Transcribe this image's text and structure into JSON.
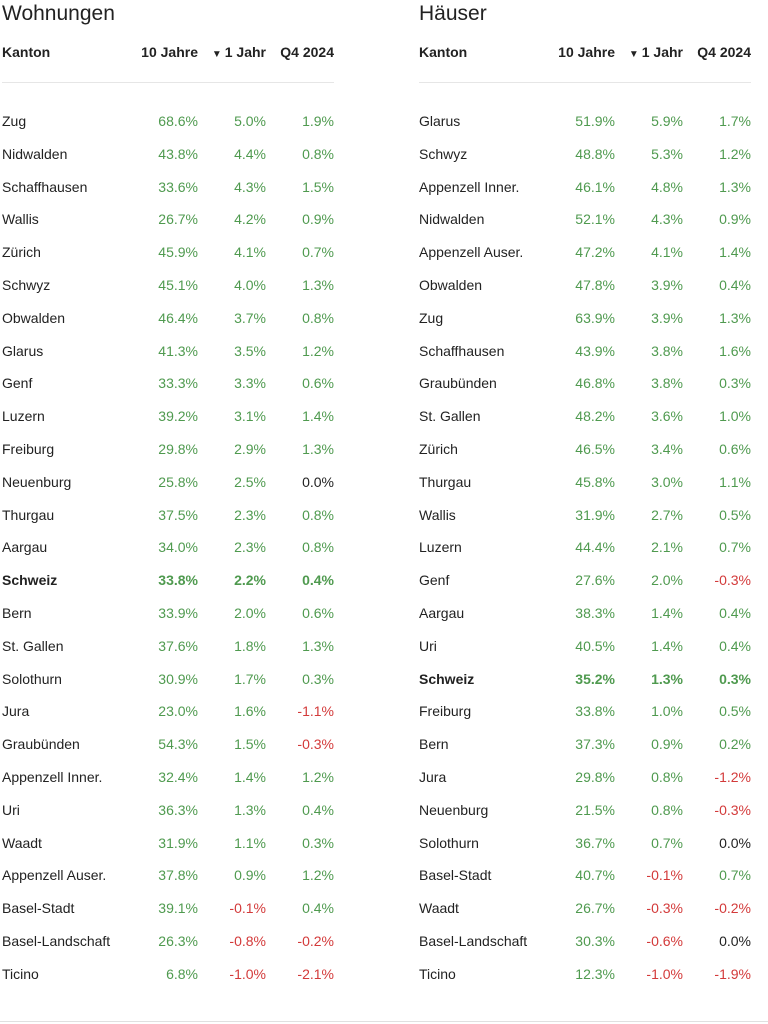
{
  "colors": {
    "positive": "#4f9a4f",
    "negative": "#d33a3a",
    "neutral": "#222222"
  },
  "tables": [
    {
      "title": "Wohnungen",
      "headers": {
        "kanton": "Kanton",
        "ten": "10 Jahre",
        "one": "1 Jahr",
        "q4": "Q4 2024"
      },
      "sort_icon": "triangle-down-icon",
      "rows": [
        [
          "Zug",
          "68.6%",
          "5.0%",
          "1.9%"
        ],
        [
          "Nidwalden",
          "43.8%",
          "4.4%",
          "0.8%"
        ],
        [
          "Schaffhausen",
          "33.6%",
          "4.3%",
          "1.5%"
        ],
        [
          "Wallis",
          "26.7%",
          "4.2%",
          "0.9%"
        ],
        [
          "Zürich",
          "45.9%",
          "4.1%",
          "0.7%"
        ],
        [
          "Schwyz",
          "45.1%",
          "4.0%",
          "1.3%"
        ],
        [
          "Obwalden",
          "46.4%",
          "3.7%",
          "0.8%"
        ],
        [
          "Glarus",
          "41.3%",
          "3.5%",
          "1.2%"
        ],
        [
          "Genf",
          "33.3%",
          "3.3%",
          "0.6%"
        ],
        [
          "Luzern",
          "39.2%",
          "3.1%",
          "1.4%"
        ],
        [
          "Freiburg",
          "29.8%",
          "2.9%",
          "1.3%"
        ],
        [
          "Neuenburg",
          "25.8%",
          "2.5%",
          "0.0%"
        ],
        [
          "Thurgau",
          "37.5%",
          "2.3%",
          "0.8%"
        ],
        [
          "Aargau",
          "34.0%",
          "2.3%",
          "0.8%"
        ],
        [
          "Schweiz",
          "33.8%",
          "2.2%",
          "0.4%"
        ],
        [
          "Bern",
          "33.9%",
          "2.0%",
          "0.6%"
        ],
        [
          "St. Gallen",
          "37.6%",
          "1.8%",
          "1.3%"
        ],
        [
          "Solothurn",
          "30.9%",
          "1.7%",
          "0.3%"
        ],
        [
          "Jura",
          "23.0%",
          "1.6%",
          "-1.1%"
        ],
        [
          "Graubünden",
          "54.3%",
          "1.5%",
          "-0.3%"
        ],
        [
          "Appenzell Inner.",
          "32.4%",
          "1.4%",
          "1.2%"
        ],
        [
          "Uri",
          "36.3%",
          "1.3%",
          "0.4%"
        ],
        [
          "Waadt",
          "31.9%",
          "1.1%",
          "0.3%"
        ],
        [
          "Appenzell Auser.",
          "37.8%",
          "0.9%",
          "1.2%"
        ],
        [
          "Basel-Stadt",
          "39.1%",
          "-0.1%",
          "0.4%"
        ],
        [
          "Basel-Landschaft",
          "26.3%",
          "-0.8%",
          "-0.2%"
        ],
        [
          "Ticino",
          "6.8%",
          "-1.0%",
          "-2.1%"
        ]
      ]
    },
    {
      "title": "Häuser",
      "headers": {
        "kanton": "Kanton",
        "ten": "10 Jahre",
        "one": "1 Jahr",
        "q4": "Q4 2024"
      },
      "sort_icon": "triangle-down-icon",
      "rows": [
        [
          "Glarus",
          "51.9%",
          "5.9%",
          "1.7%"
        ],
        [
          "Schwyz",
          "48.8%",
          "5.3%",
          "1.2%"
        ],
        [
          "Appenzell Inner.",
          "46.1%",
          "4.8%",
          "1.3%"
        ],
        [
          "Nidwalden",
          "52.1%",
          "4.3%",
          "0.9%"
        ],
        [
          "Appenzell Auser.",
          "47.2%",
          "4.1%",
          "1.4%"
        ],
        [
          "Obwalden",
          "47.8%",
          "3.9%",
          "0.4%"
        ],
        [
          "Zug",
          "63.9%",
          "3.9%",
          "1.3%"
        ],
        [
          "Schaffhausen",
          "43.9%",
          "3.8%",
          "1.6%"
        ],
        [
          "Graubünden",
          "46.8%",
          "3.8%",
          "0.3%"
        ],
        [
          "St. Gallen",
          "48.2%",
          "3.6%",
          "1.0%"
        ],
        [
          "Zürich",
          "46.5%",
          "3.4%",
          "0.6%"
        ],
        [
          "Thurgau",
          "45.8%",
          "3.0%",
          "1.1%"
        ],
        [
          "Wallis",
          "31.9%",
          "2.7%",
          "0.5%"
        ],
        [
          "Luzern",
          "44.4%",
          "2.1%",
          "0.7%"
        ],
        [
          "Genf",
          "27.6%",
          "2.0%",
          "-0.3%"
        ],
        [
          "Aargau",
          "38.3%",
          "1.4%",
          "0.4%"
        ],
        [
          "Uri",
          "40.5%",
          "1.4%",
          "0.4%"
        ],
        [
          "Schweiz",
          "35.2%",
          "1.3%",
          "0.3%"
        ],
        [
          "Freiburg",
          "33.8%",
          "1.0%",
          "0.5%"
        ],
        [
          "Bern",
          "37.3%",
          "0.9%",
          "0.2%"
        ],
        [
          "Jura",
          "29.8%",
          "0.8%",
          "-1.2%"
        ],
        [
          "Neuenburg",
          "21.5%",
          "0.8%",
          "-0.3%"
        ],
        [
          "Solothurn",
          "36.7%",
          "0.7%",
          "0.0%"
        ],
        [
          "Basel-Stadt",
          "40.7%",
          "-0.1%",
          "0.7%"
        ],
        [
          "Waadt",
          "26.7%",
          "-0.3%",
          "-0.2%"
        ],
        [
          "Basel-Landschaft",
          "30.3%",
          "-0.6%",
          "0.0%"
        ],
        [
          "Ticino",
          "12.3%",
          "-1.0%",
          "-1.9%"
        ]
      ]
    }
  ]
}
